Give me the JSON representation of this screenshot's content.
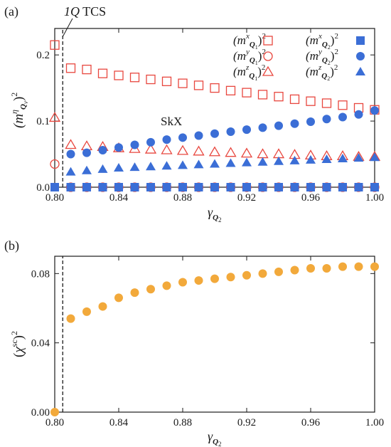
{
  "chart_data": [
    {
      "panel": "(a)",
      "type": "scatter",
      "annotations": {
        "phase_left": "1Q TCS",
        "phase_right": "SkX"
      },
      "xlabel": "γQ₂",
      "ylabel": "(mηQν)²",
      "xlim": [
        0.8,
        1.0
      ],
      "ylim": [
        0.0,
        0.24
      ],
      "xticks": [
        "0.80",
        "0.84",
        "0.88",
        "0.92",
        "0.96",
        "1.00"
      ],
      "yticks": [
        "0.0",
        "0.1",
        "0.2"
      ],
      "phase_boundary_x": 0.805,
      "legend_placement": "top-right",
      "colors": {
        "q1": "#e8473f",
        "q2": "#3b6ed6"
      },
      "series": [
        {
          "name": "(mxQ1)²",
          "marker": "square-open",
          "color": "#e8473f",
          "x": [
            0.8,
            0.81,
            0.82,
            0.83,
            0.84,
            0.85,
            0.86,
            0.87,
            0.88,
            0.89,
            0.9,
            0.91,
            0.92,
            0.93,
            0.94,
            0.95,
            0.96,
            0.97,
            0.98,
            0.99,
            1.0
          ],
          "y": [
            0.215,
            0.18,
            0.178,
            0.172,
            0.169,
            0.166,
            0.163,
            0.16,
            0.157,
            0.154,
            0.15,
            0.146,
            0.143,
            0.14,
            0.137,
            0.133,
            0.13,
            0.127,
            0.124,
            0.12,
            0.117
          ]
        },
        {
          "name": "(myQ1)²",
          "marker": "circle-open",
          "color": "#e8473f",
          "x": [
            0.8,
            0.81,
            0.82,
            0.83,
            0.84,
            0.85,
            0.86,
            0.87,
            0.88,
            0.89,
            0.9,
            0.91,
            0.92,
            0.93,
            0.94,
            0.95,
            0.96,
            0.97,
            0.98,
            0.99,
            1.0
          ],
          "y": [
            0.035,
            0.0,
            0.0,
            0.0,
            0.0,
            0.0,
            0.0,
            0.0,
            0.0,
            0.0,
            0.0,
            0.0,
            0.0,
            0.0,
            0.0,
            0.0,
            0.0,
            0.0,
            0.0,
            0.0,
            0.0
          ]
        },
        {
          "name": "(mzQ1)²",
          "marker": "triangle-open",
          "color": "#e8473f",
          "x": [
            0.8,
            0.81,
            0.82,
            0.83,
            0.84,
            0.85,
            0.86,
            0.87,
            0.88,
            0.89,
            0.9,
            0.91,
            0.92,
            0.93,
            0.94,
            0.95,
            0.96,
            0.97,
            0.98,
            0.99,
            1.0
          ],
          "y": [
            0.105,
            0.064,
            0.062,
            0.061,
            0.059,
            0.058,
            0.057,
            0.056,
            0.055,
            0.054,
            0.053,
            0.052,
            0.051,
            0.05,
            0.05,
            0.049,
            0.048,
            0.047,
            0.047,
            0.046,
            0.046
          ]
        },
        {
          "name": "(mxQ2)²",
          "marker": "square-filled",
          "color": "#3b6ed6",
          "x": [
            0.8,
            0.81,
            0.82,
            0.83,
            0.84,
            0.85,
            0.86,
            0.87,
            0.88,
            0.89,
            0.9,
            0.91,
            0.92,
            0.93,
            0.94,
            0.95,
            0.96,
            0.97,
            0.98,
            0.99,
            1.0
          ],
          "y": [
            0.0,
            0.0,
            0.0,
            0.0,
            0.0,
            0.0,
            0.0,
            0.0,
            0.0,
            0.0,
            0.0,
            0.0,
            0.0,
            0.0,
            0.0,
            0.0,
            0.0,
            0.0,
            0.0,
            0.0,
            0.0
          ]
        },
        {
          "name": "(myQ2)²",
          "marker": "circle-filled",
          "color": "#3b6ed6",
          "x": [
            0.81,
            0.82,
            0.83,
            0.84,
            0.85,
            0.86,
            0.87,
            0.88,
            0.89,
            0.9,
            0.91,
            0.92,
            0.93,
            0.94,
            0.95,
            0.96,
            0.97,
            0.98,
            0.99,
            1.0
          ],
          "y": [
            0.05,
            0.052,
            0.056,
            0.06,
            0.064,
            0.068,
            0.072,
            0.075,
            0.078,
            0.081,
            0.084,
            0.087,
            0.09,
            0.093,
            0.096,
            0.099,
            0.103,
            0.106,
            0.11,
            0.116
          ]
        },
        {
          "name": "(mzQ2)²",
          "marker": "triangle-filled",
          "color": "#3b6ed6",
          "x": [
            0.81,
            0.82,
            0.83,
            0.84,
            0.85,
            0.86,
            0.87,
            0.88,
            0.89,
            0.9,
            0.91,
            0.92,
            0.93,
            0.94,
            0.95,
            0.96,
            0.97,
            0.98,
            0.99,
            1.0
          ],
          "y": [
            0.023,
            0.025,
            0.027,
            0.029,
            0.03,
            0.031,
            0.032,
            0.033,
            0.034,
            0.035,
            0.036,
            0.037,
            0.038,
            0.039,
            0.04,
            0.041,
            0.042,
            0.043,
            0.044,
            0.045
          ]
        }
      ]
    },
    {
      "panel": "(b)",
      "type": "scatter",
      "xlabel": "γQ₂",
      "ylabel": "(χsc)²",
      "xlim": [
        0.8,
        1.0
      ],
      "ylim": [
        0.0,
        0.09
      ],
      "xticks": [
        "0.80",
        "0.84",
        "0.88",
        "0.92",
        "0.96",
        "1.00"
      ],
      "yticks": [
        "0.00",
        "0.04",
        "0.08"
      ],
      "phase_boundary_x": 0.805,
      "colors": {
        "points": "#f2a93b"
      },
      "series": [
        {
          "marker": "circle-filled",
          "color": "#f2a93b",
          "x": [
            0.8,
            0.81,
            0.82,
            0.83,
            0.84,
            0.85,
            0.86,
            0.87,
            0.88,
            0.89,
            0.9,
            0.91,
            0.92,
            0.93,
            0.94,
            0.95,
            0.96,
            0.97,
            0.98,
            0.99,
            1.0
          ],
          "y": [
            0.0,
            0.054,
            0.058,
            0.061,
            0.066,
            0.069,
            0.071,
            0.073,
            0.075,
            0.076,
            0.077,
            0.078,
            0.079,
            0.08,
            0.081,
            0.082,
            0.083,
            0.083,
            0.084,
            0.084,
            0.084
          ]
        }
      ]
    }
  ]
}
